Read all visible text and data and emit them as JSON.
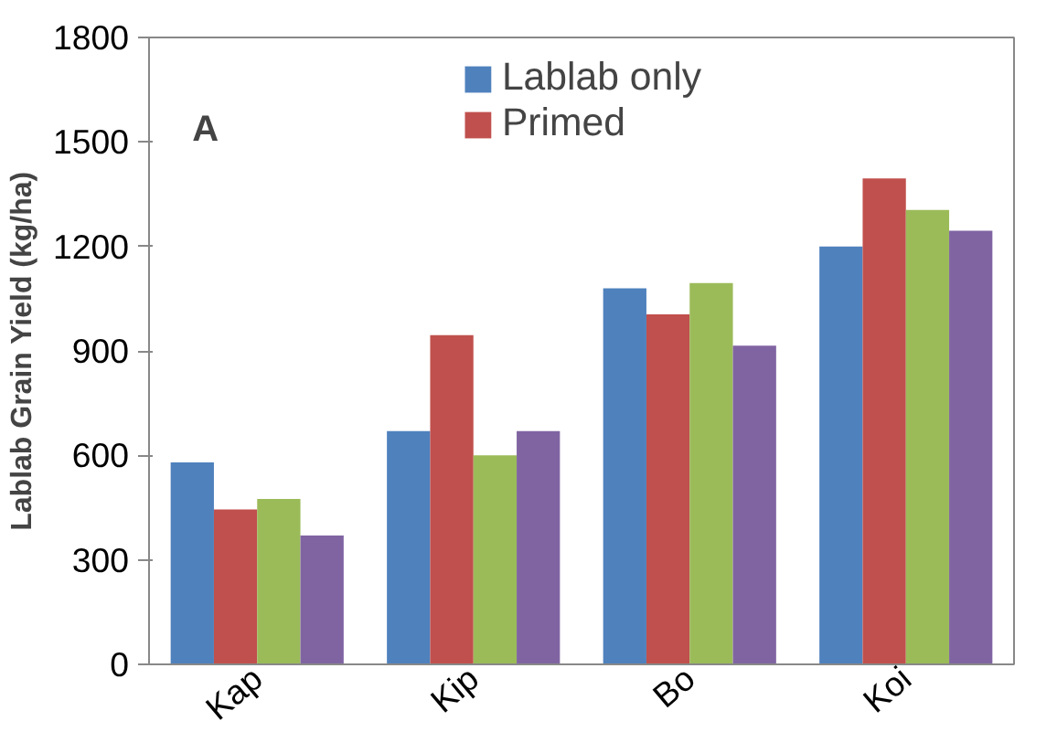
{
  "chart_data": {
    "type": "bar",
    "ylabel": "Lablab Grain Yield (kg/ha)",
    "categories": [
      "Kap",
      "Kip",
      "Bo",
      "Koi"
    ],
    "series": [
      {
        "name": "Lablab only",
        "color": "#4f81bd",
        "values": [
          580,
          670,
          1080,
          1200
        ]
      },
      {
        "name": "Primed",
        "color": "#c0504d",
        "values": [
          445,
          945,
          1005,
          1395
        ]
      },
      {
        "color": "#9bbb59",
        "values": [
          475,
          600,
          1095,
          1305
        ]
      },
      {
        "color": "#8064a2",
        "values": [
          370,
          670,
          915,
          1245
        ]
      }
    ],
    "ylim": [
      0,
      1800
    ],
    "yticks": [
      0,
      300,
      600,
      900,
      1200,
      1500,
      1800
    ],
    "grid": false,
    "legend": "top",
    "annotations": [
      "A"
    ]
  }
}
